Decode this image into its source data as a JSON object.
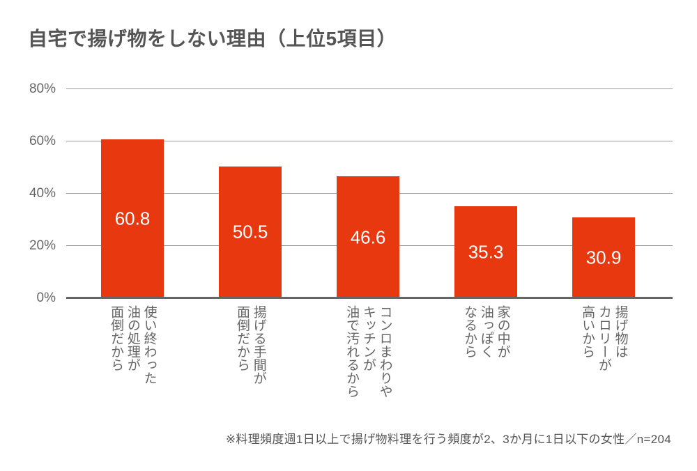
{
  "title": "自宅で揚げ物をしない理由（上位5項目）",
  "footnote": "※料理頻度週1日以上で揚げ物料理を行う頻度が2、3か月に1日以下の女性／n=204",
  "colors": {
    "bar": "#E8380F",
    "value_label": "#FFFFFF",
    "gridline": "#999999",
    "baseline": "#666666",
    "title_text": "#555555",
    "axis_text": "#666666",
    "footnote_text": "#555555"
  },
  "chart_data": {
    "type": "bar",
    "title": "自宅で揚げ物をしない理由（上位5項目）",
    "categories": [
      [
        "使い終わった",
        "油の処理が",
        "面倒だから"
      ],
      [
        "揚げる手間が",
        "面倒だから"
      ],
      [
        "コンロまわりや",
        "キッチンが",
        "油で汚れるから"
      ],
      [
        "家の中が",
        "油っぽく",
        "なるから"
      ],
      [
        "揚げ物は",
        "カロリーが",
        "高いから"
      ]
    ],
    "values": [
      60.8,
      50.5,
      46.6,
      35.3,
      30.9
    ],
    "value_labels": [
      "60.8",
      "50.5",
      "46.6",
      "35.3",
      "30.9"
    ],
    "xlabel": "",
    "ylabel": "%",
    "ylim": [
      0,
      80
    ],
    "yticks": [
      0,
      20,
      40,
      60,
      80
    ],
    "ytick_labels": [
      "0%",
      "20%",
      "40%",
      "60%",
      "80%"
    ],
    "grid": true,
    "legend": false,
    "annotation": "※料理頻度週1日以上で揚げ物料理を行う頻度が2、3か月に1日以下の女性／n=204"
  }
}
